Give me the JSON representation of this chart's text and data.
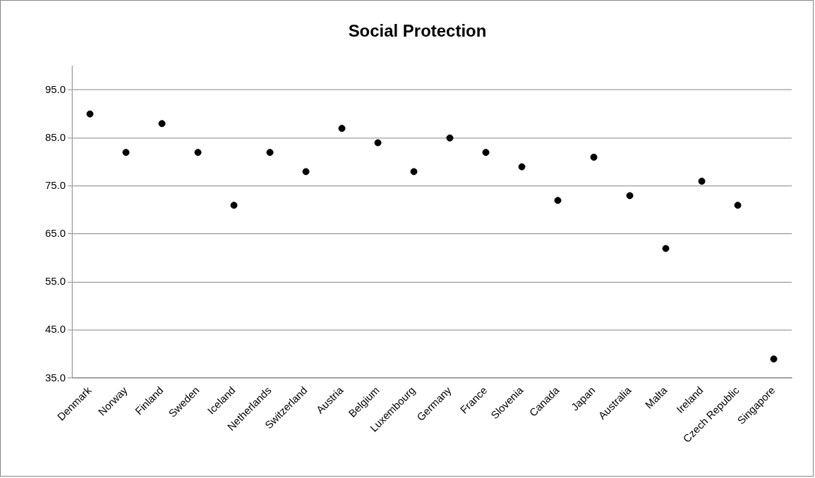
{
  "chart_data": {
    "type": "scatter",
    "title": "Social Protection",
    "categories": [
      "Denmark",
      "Norway",
      "Finland",
      "Sweden",
      "Iceland",
      "Netherlands",
      "Switzerland",
      "Austria",
      "Belgium",
      "Luxembourg",
      "Germany",
      "France",
      "Slovenia",
      "Canada",
      "Japan",
      "Australia",
      "Malta",
      "Ireland",
      "Czech Republic",
      "Singapore"
    ],
    "series": [
      {
        "color": "#000000",
        "values": [
          90,
          82,
          88,
          82,
          71,
          82,
          78,
          87,
          84,
          78,
          85,
          82,
          79,
          72,
          81,
          73,
          62,
          76,
          71,
          39
        ]
      }
    ],
    "ylim": [
      35,
      100
    ],
    "yticks": [
      {
        "value": 35,
        "label": "35.0"
      },
      {
        "value": 45,
        "label": "45.0"
      },
      {
        "value": 55,
        "label": "55.0"
      },
      {
        "value": 65,
        "label": "65.0"
      },
      {
        "value": 75,
        "label": "75.0"
      },
      {
        "value": 85,
        "label": "85.0"
      },
      {
        "value": 95,
        "label": "95.0"
      }
    ],
    "grid": "y",
    "legend": false,
    "marker": "circle"
  }
}
